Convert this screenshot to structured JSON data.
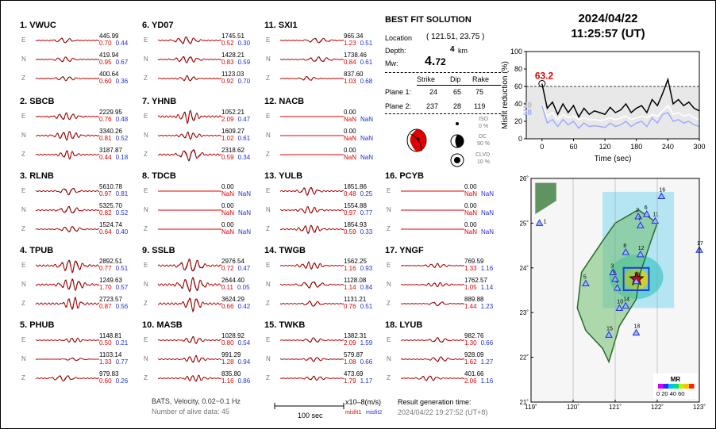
{
  "header": {
    "date": "2024/04/22",
    "time": "11:25:57  (UT)"
  },
  "solution": {
    "title": "BEST FIT SOLUTION",
    "location_label": "Location",
    "location_value": "( 121.51, 23.75 )",
    "depth_label": "Depth:",
    "depth_value": "4",
    "depth_unit": "km",
    "mw_label": "Mw:",
    "mw_int": "4.",
    "mw_dec": "72",
    "col_strike": "Strike",
    "col_dip": "Dip",
    "col_rake": "Rake",
    "plane1_label": "Plane 1:",
    "plane1": [
      "24",
      "65",
      "75"
    ],
    "plane2_label": "Plane 2:",
    "plane2": [
      "237",
      "28",
      "119"
    ],
    "iso_label": "ISO",
    "iso_val": "0 %",
    "dc_label": "DC",
    "dc_val": "90 %",
    "clvd_label": "CLVD",
    "clvd_val": "10 %"
  },
  "stations": [
    {
      "title": "1.  VWUC",
      "comps": [
        {
          "c": "E",
          "amp": "445.99",
          "m1": "0.70",
          "m2": "0.44",
          "seed": 1,
          "a": 0.35
        },
        {
          "c": "N",
          "amp": "419.94",
          "m1": "0.95",
          "m2": "0.67",
          "seed": 2,
          "a": 0.35
        },
        {
          "c": "Z",
          "amp": "400.64",
          "m1": "0.60",
          "m2": "0.36",
          "seed": 3,
          "a": 0.3
        }
      ]
    },
    {
      "title": "2.  SBCB",
      "comps": [
        {
          "c": "E",
          "amp": "2229.95",
          "m1": "0.76",
          "m2": "0.48",
          "seed": 4,
          "a": 0.5
        },
        {
          "c": "N",
          "amp": "3340.26",
          "m1": "0.81",
          "m2": "0.52",
          "seed": 5,
          "a": 0.6
        },
        {
          "c": "Z",
          "amp": "3187.87",
          "m1": "0.44",
          "m2": "0.18",
          "seed": 6,
          "a": 0.6
        }
      ]
    },
    {
      "title": "3.  RLNB",
      "comps": [
        {
          "c": "E",
          "amp": "5610.78",
          "m1": "0.97",
          "m2": "0.81",
          "seed": 7,
          "a": 0.5
        },
        {
          "c": "N",
          "amp": "5325.70",
          "m1": "0.82",
          "m2": "0.52",
          "seed": 8,
          "a": 0.5
        },
        {
          "c": "Z",
          "amp": "1524.74",
          "m1": "0.64",
          "m2": "0.40",
          "seed": 9,
          "a": 0.4
        }
      ]
    },
    {
      "title": "4.  TPUB",
      "comps": [
        {
          "c": "E",
          "amp": "2892.51",
          "m1": "0.77",
          "m2": "0.51",
          "seed": 10,
          "a": 0.9
        },
        {
          "c": "N",
          "amp": "1249.63",
          "m1": "1.70",
          "m2": "0.57",
          "seed": 11,
          "a": 0.8
        },
        {
          "c": "Z",
          "amp": "2723.57",
          "m1": "0.87",
          "m2": "0.56",
          "seed": 12,
          "a": 0.9
        }
      ]
    },
    {
      "title": "5.  PHUB",
      "comps": [
        {
          "c": "E",
          "amp": "1148.81",
          "m1": "0.50",
          "m2": "0.21",
          "seed": 13,
          "a": 0.35
        },
        {
          "c": "N",
          "amp": "1103.14",
          "m1": "1.33",
          "m2": "0.77",
          "seed": 14,
          "a": 0.2
        },
        {
          "c": "Z",
          "amp": "979.83",
          "m1": "0.60",
          "m2": "0.26",
          "seed": 15,
          "a": 0.4
        }
      ]
    },
    {
      "title": "6.  YD07",
      "comps": [
        {
          "c": "E",
          "amp": "1745.51",
          "m1": "0.52",
          "m2": "0.30",
          "seed": 16,
          "a": 0.5
        },
        {
          "c": "N",
          "amp": "1428.21",
          "m1": "0.83",
          "m2": "0.59",
          "seed": 17,
          "a": 0.45
        },
        {
          "c": "Z",
          "amp": "1123.03",
          "m1": "0.92",
          "m2": "0.70",
          "seed": 18,
          "a": 0.4
        }
      ]
    },
    {
      "title": "7.  YHNB",
      "comps": [
        {
          "c": "E",
          "amp": "1052.21",
          "m1": "2.09",
          "m2": "0.47",
          "seed": 19,
          "a": 0.9
        },
        {
          "c": "N",
          "amp": "1609.27",
          "m1": "1.02",
          "m2": "0.61",
          "seed": 20,
          "a": 0.5
        },
        {
          "c": "Z",
          "amp": "2318.62",
          "m1": "0.59",
          "m2": "0.34",
          "seed": 21,
          "a": 0.8
        }
      ]
    },
    {
      "title": "8.  TDCB",
      "comps": [
        {
          "c": "E",
          "amp": "0.00",
          "m1": "NaN",
          "m2": "NaN",
          "seed": 0,
          "a": 0
        },
        {
          "c": "N",
          "amp": "0.00",
          "m1": "NaN",
          "m2": "NaN",
          "seed": 0,
          "a": 0
        },
        {
          "c": "Z",
          "amp": "0.00",
          "m1": "NaN",
          "m2": "NaN",
          "seed": 0,
          "a": 0
        }
      ]
    },
    {
      "title": "9.  SSLB",
      "comps": [
        {
          "c": "E",
          "amp": "2976.54",
          "m1": "0.72",
          "m2": "0.47",
          "seed": 22,
          "a": 0.9
        },
        {
          "c": "N",
          "amp": "2644.40",
          "m1": "0.11",
          "m2": "0.05",
          "seed": 23,
          "a": 1.0
        },
        {
          "c": "Z",
          "amp": "3624.29",
          "m1": "0.66",
          "m2": "0.42",
          "seed": 24,
          "a": 1.0
        }
      ]
    },
    {
      "title": "10. MASB",
      "comps": [
        {
          "c": "E",
          "amp": "1028.92",
          "m1": "0.80",
          "m2": "0.54",
          "seed": 25,
          "a": 0.5
        },
        {
          "c": "N",
          "amp": "991.29",
          "m1": "1.28",
          "m2": "0.94",
          "seed": 26,
          "a": 0.5
        },
        {
          "c": "Z",
          "amp": "835.80",
          "m1": "1.16",
          "m2": "0.86",
          "seed": 27,
          "a": 0.45
        }
      ]
    },
    {
      "title": "11. SXI1",
      "comps": [
        {
          "c": "E",
          "amp": "965.34",
          "m1": "1.23",
          "m2": "0.51",
          "seed": 28,
          "a": 0.35
        },
        {
          "c": "N",
          "amp": "1738.46",
          "m1": "0.84",
          "m2": "0.61",
          "seed": 29,
          "a": 0.35
        },
        {
          "c": "Z",
          "amp": "837.60",
          "m1": "1.03",
          "m2": "0.68",
          "seed": 30,
          "a": 0.3
        }
      ]
    },
    {
      "title": "12. NACB",
      "comps": [
        {
          "c": "E",
          "amp": "0.00",
          "m1": "NaN",
          "m2": "NaN",
          "seed": 0,
          "a": 0
        },
        {
          "c": "N",
          "amp": "0.00",
          "m1": "NaN",
          "m2": "NaN",
          "seed": 0,
          "a": 0
        },
        {
          "c": "Z",
          "amp": "0.00",
          "m1": "NaN",
          "m2": "NaN",
          "seed": 0,
          "a": 0
        }
      ]
    },
    {
      "title": "13. YULB",
      "comps": [
        {
          "c": "E",
          "amp": "1851.86",
          "m1": "0.48",
          "m2": "0.25",
          "seed": 31,
          "a": 0.6
        },
        {
          "c": "N",
          "amp": "1554.88",
          "m1": "0.97",
          "m2": "0.77",
          "seed": 32,
          "a": 0.5
        },
        {
          "c": "Z",
          "amp": "1854.93",
          "m1": "0.59",
          "m2": "0.33",
          "seed": 33,
          "a": 0.6
        }
      ]
    },
    {
      "title": "14. TWGB",
      "comps": [
        {
          "c": "E",
          "amp": "1562.25",
          "m1": "1.16",
          "m2": "0.93",
          "seed": 34,
          "a": 0.5
        },
        {
          "c": "N",
          "amp": "1128.08",
          "m1": "1.14",
          "m2": "0.84",
          "seed": 35,
          "a": 0.45
        },
        {
          "c": "Z",
          "amp": "1131.21",
          "m1": "0.76",
          "m2": "0.51",
          "seed": 36,
          "a": 0.4
        }
      ]
    },
    {
      "title": "15. TWKB",
      "comps": [
        {
          "c": "E",
          "amp": "1382.31",
          "m1": "2.09",
          "m2": "1.59",
          "seed": 37,
          "a": 0.35
        },
        {
          "c": "N",
          "amp": "579.87",
          "m1": "1.08",
          "m2": "0.66",
          "seed": 38,
          "a": 0.3
        },
        {
          "c": "Z",
          "amp": "473.69",
          "m1": "1.79",
          "m2": "1.17",
          "seed": 39,
          "a": 0.3
        }
      ]
    },
    {
      "title": "16. PCYB",
      "comps": [
        {
          "c": "E",
          "amp": "0.00",
          "m1": "NaN",
          "m2": "NaN",
          "seed": 0,
          "a": 0
        },
        {
          "c": "N",
          "amp": "0.00",
          "m1": "NaN",
          "m2": "NaN",
          "seed": 0,
          "a": 0
        },
        {
          "c": "Z",
          "amp": "0.00",
          "m1": "NaN",
          "m2": "NaN",
          "seed": 0,
          "a": 0
        }
      ]
    },
    {
      "title": "17. YNGF",
      "comps": [
        {
          "c": "E",
          "amp": "769.59",
          "m1": "1.33",
          "m2": "1.16",
          "seed": 40,
          "a": 0.3
        },
        {
          "c": "N",
          "amp": "1762.57",
          "m1": "1.05",
          "m2": "1.14",
          "seed": 41,
          "a": 0.3
        },
        {
          "c": "Z",
          "amp": "889.88",
          "m1": "1.44",
          "m2": "1.23",
          "seed": 42,
          "a": 0.3
        }
      ]
    },
    {
      "title": "18. LYUB",
      "comps": [
        {
          "c": "E",
          "amp": "982.76",
          "m1": "1.30",
          "m2": "0.66",
          "seed": 43,
          "a": 0.35
        },
        {
          "c": "N",
          "amp": "928.09",
          "m1": "1.62",
          "m2": "1.27",
          "seed": 44,
          "a": 0.35
        },
        {
          "c": "Z",
          "amp": "401.66",
          "m1": "2.06",
          "m2": "1.16",
          "seed": 45,
          "a": 0.35
        }
      ]
    }
  ],
  "chart_data": [
    {
      "type": "line",
      "ylabel": "Misfit reduction (%)",
      "xlabel": "Time (sec)",
      "xlim": [
        -30,
        300
      ],
      "ylim": [
        0,
        100
      ],
      "x_ticks": [
        "0",
        "60",
        "120",
        "180",
        "240",
        "300"
      ],
      "y_ticks": [
        "0",
        "20",
        "40",
        "60",
        "80",
        "100"
      ],
      "reference_line": 60,
      "marker_label": "63.2",
      "series": [
        {
          "label": "39",
          "color": "#c8c8c8"
        },
        {
          "label": "38",
          "color": "#9aa8ff"
        }
      ],
      "x": [
        0,
        10,
        20,
        30,
        40,
        50,
        60,
        70,
        80,
        90,
        100,
        110,
        120,
        130,
        140,
        150,
        160,
        170,
        180,
        190,
        200,
        210,
        220,
        230,
        240,
        250,
        260,
        270,
        280,
        290,
        300
      ],
      "values_black": [
        63.2,
        35,
        42,
        28,
        40,
        30,
        38,
        25,
        35,
        28,
        32,
        30,
        28,
        36,
        30,
        33,
        40,
        30,
        35,
        38,
        30,
        45,
        38,
        52,
        68,
        40,
        45,
        38,
        42,
        35,
        32
      ],
      "values_white": [
        39,
        26,
        30,
        22,
        28,
        24,
        26,
        22,
        24,
        22,
        22,
        21,
        22,
        24,
        22,
        24,
        26,
        22,
        24,
        26,
        24,
        28,
        26,
        32,
        38,
        28,
        30,
        26,
        28,
        24,
        22
      ],
      "values_blue": [
        38,
        18,
        22,
        14,
        22,
        16,
        20,
        12,
        18,
        14,
        15,
        14,
        13,
        18,
        14,
        16,
        20,
        14,
        18,
        20,
        14,
        24,
        18,
        28,
        30,
        20,
        22,
        18,
        20,
        16,
        14
      ]
    }
  ],
  "map": {
    "lon_ticks": [
      "119˚",
      "120˚",
      "121˚",
      "122˚",
      "123˚"
    ],
    "lat_ticks": [
      "26˚",
      "25˚",
      "24˚",
      "23˚",
      "22˚",
      "21˚"
    ],
    "legend_title": "MR",
    "legend_ticks": "0 20 40 60",
    "stations": [
      "1",
      "2",
      "3",
      "4",
      "5",
      "6",
      "7",
      "8",
      "9",
      "10",
      "11",
      "12",
      "13",
      "14",
      "15",
      "16",
      "17",
      "18"
    ]
  },
  "footer": {
    "line1": "BATS, Velocity, 0.02~0.1 Hz",
    "line2": "Number of alive data: 45",
    "scale_label": "100 sec",
    "units": "x10–8(m/s)",
    "legend_m1": "misfit1",
    "legend_m2": "misfit2",
    "result_label": "Result generation time:",
    "result_time": "2024/04/22  19:27:52  (UT+8)"
  }
}
